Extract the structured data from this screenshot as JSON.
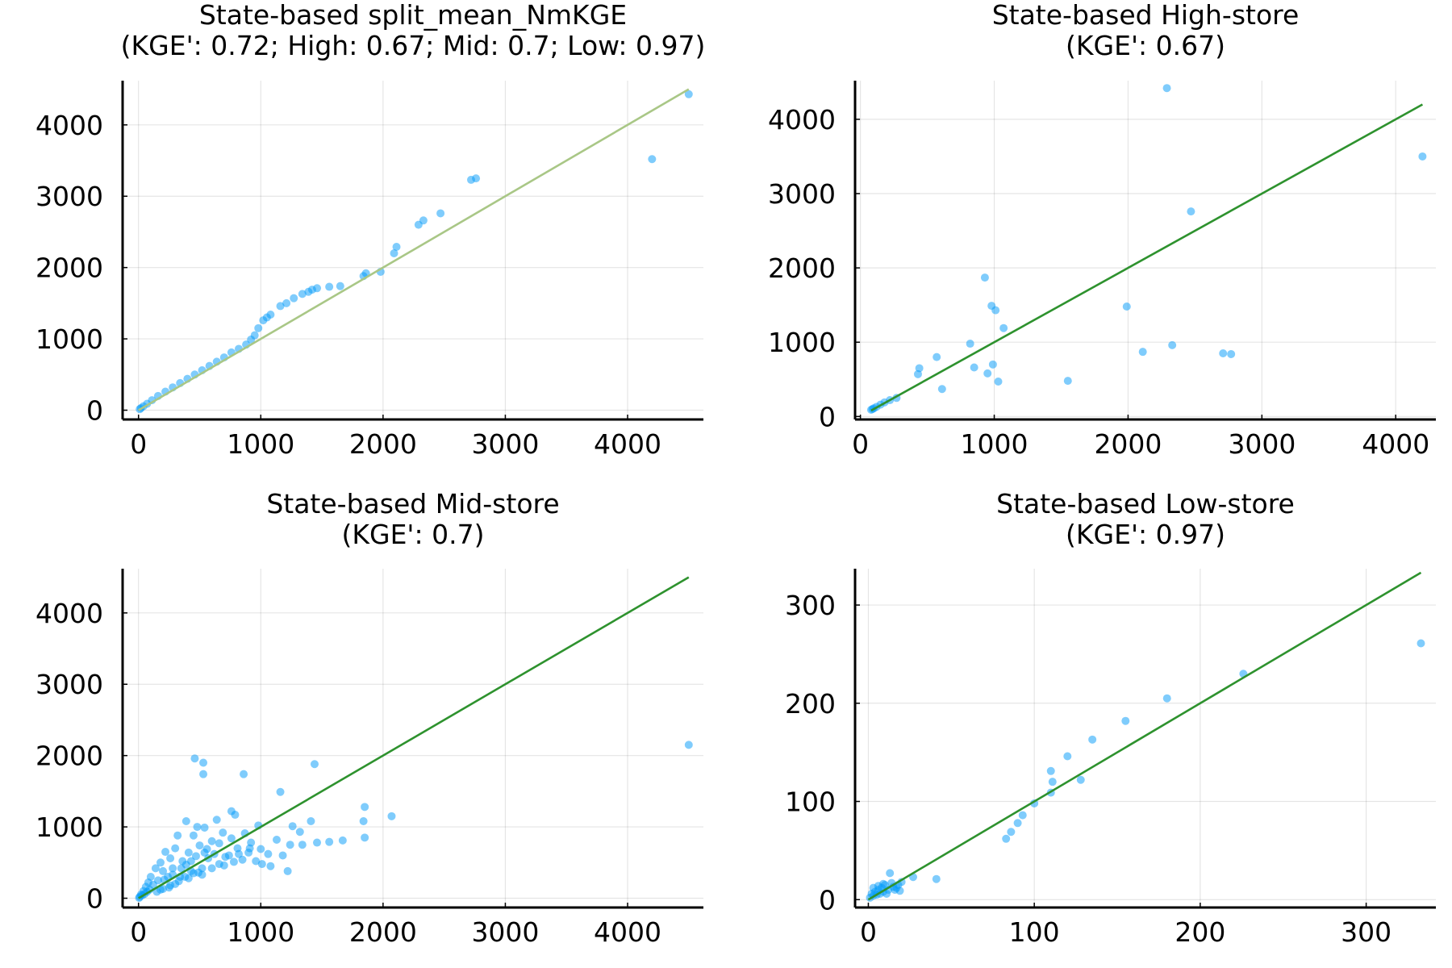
{
  "chart_data": [
    {
      "type": "scatter",
      "title": "State-based split_mean_NmKGE",
      "subtitle": "(KGE': 0.72; High: 0.67; Mid: 0.7; Low: 0.97)",
      "xlim": [
        -130,
        4620
      ],
      "ylim": [
        -130,
        4620
      ],
      "xticks": [
        0,
        1000,
        2000,
        3000,
        4000
      ],
      "yticks": [
        0,
        1000,
        2000,
        3000,
        4000
      ],
      "grid": true,
      "legend": "none",
      "ref_line": {
        "from": [
          0,
          0
        ],
        "to": [
          4500,
          4500
        ],
        "color": "#a9c786"
      },
      "points_color": "#009af9",
      "points": [
        [
          4500,
          4430
        ],
        [
          4200,
          3520
        ],
        [
          2760,
          3250
        ],
        [
          2720,
          3230
        ],
        [
          2470,
          2760
        ],
        [
          2330,
          2660
        ],
        [
          2290,
          2600
        ],
        [
          2110,
          2290
        ],
        [
          2090,
          2200
        ],
        [
          1980,
          1940
        ],
        [
          1860,
          1920
        ],
        [
          1840,
          1880
        ],
        [
          1650,
          1740
        ],
        [
          1560,
          1730
        ],
        [
          1460,
          1710
        ],
        [
          1420,
          1690
        ],
        [
          1390,
          1660
        ],
        [
          1340,
          1630
        ],
        [
          1270,
          1570
        ],
        [
          1210,
          1500
        ],
        [
          1160,
          1460
        ],
        [
          1080,
          1340
        ],
        [
          1050,
          1300
        ],
        [
          1020,
          1260
        ],
        [
          980,
          1150
        ],
        [
          950,
          1050
        ],
        [
          920,
          990
        ],
        [
          880,
          920
        ],
        [
          820,
          860
        ],
        [
          760,
          810
        ],
        [
          700,
          740
        ],
        [
          640,
          680
        ],
        [
          580,
          620
        ],
        [
          520,
          560
        ],
        [
          460,
          500
        ],
        [
          400,
          440
        ],
        [
          340,
          380
        ],
        [
          280,
          320
        ],
        [
          220,
          260
        ],
        [
          160,
          200
        ],
        [
          110,
          140
        ],
        [
          70,
          90
        ],
        [
          40,
          55
        ],
        [
          20,
          30
        ],
        [
          10,
          15
        ]
      ]
    },
    {
      "type": "scatter",
      "title": "State-based High-store",
      "subtitle": "(KGE': 0.67)",
      "xlim": [
        -40,
        4300
      ],
      "ylim": [
        -40,
        4520
      ],
      "xticks": [
        0,
        1000,
        2000,
        3000,
        4000
      ],
      "yticks": [
        0,
        1000,
        2000,
        3000,
        4000
      ],
      "grid": true,
      "legend": "none",
      "ref_line": {
        "from": [
          80,
          80
        ],
        "to": [
          4200,
          4200
        ],
        "color": "#2e922e"
      },
      "points_color": "#009af9",
      "points": [
        [
          2290,
          4420
        ],
        [
          4200,
          3500
        ],
        [
          2470,
          2760
        ],
        [
          930,
          1870
        ],
        [
          980,
          1490
        ],
        [
          1010,
          1430
        ],
        [
          1070,
          1190
        ],
        [
          1990,
          1480
        ],
        [
          850,
          660
        ],
        [
          820,
          980
        ],
        [
          570,
          800
        ],
        [
          440,
          650
        ],
        [
          430,
          570
        ],
        [
          610,
          370
        ],
        [
          950,
          580
        ],
        [
          990,
          700
        ],
        [
          1030,
          470
        ],
        [
          1550,
          480
        ],
        [
          2110,
          870
        ],
        [
          2330,
          960
        ],
        [
          2710,
          850
        ],
        [
          2770,
          840
        ],
        [
          270,
          250
        ],
        [
          220,
          220
        ],
        [
          180,
          190
        ],
        [
          150,
          160
        ],
        [
          120,
          130
        ],
        [
          100,
          110
        ],
        [
          90,
          100
        ],
        [
          80,
          90
        ]
      ]
    },
    {
      "type": "scatter",
      "title": "State-based Mid-store",
      "subtitle": "(KGE': 0.7)",
      "xlim": [
        -130,
        4620
      ],
      "ylim": [
        -130,
        4620
      ],
      "xticks": [
        0,
        1000,
        2000,
        3000,
        4000
      ],
      "yticks": [
        0,
        1000,
        2000,
        3000,
        4000
      ],
      "grid": true,
      "legend": "none",
      "ref_line": {
        "from": [
          0,
          0
        ],
        "to": [
          4500,
          4500
        ],
        "color": "#2e922e"
      },
      "points_color": "#009af9",
      "points": [
        [
          4500,
          2150
        ],
        [
          460,
          1960
        ],
        [
          530,
          1900
        ],
        [
          530,
          1740
        ],
        [
          860,
          1740
        ],
        [
          1440,
          1880
        ],
        [
          790,
          1170
        ],
        [
          1160,
          1490
        ],
        [
          760,
          1220
        ],
        [
          1850,
          1280
        ],
        [
          1840,
          1080
        ],
        [
          2070,
          1150
        ],
        [
          1410,
          1080
        ],
        [
          1260,
          1010
        ],
        [
          1320,
          930
        ],
        [
          1340,
          750
        ],
        [
          1240,
          750
        ],
        [
          1560,
          790
        ],
        [
          1460,
          780
        ],
        [
          1670,
          810
        ],
        [
          1850,
          850
        ],
        [
          1220,
          380
        ],
        [
          1080,
          450
        ],
        [
          1010,
          480
        ],
        [
          960,
          520
        ],
        [
          920,
          780
        ],
        [
          900,
          640
        ],
        [
          810,
          700
        ],
        [
          740,
          600
        ],
        [
          690,
          920
        ],
        [
          660,
          480
        ],
        [
          640,
          1100
        ],
        [
          600,
          800
        ],
        [
          570,
          560
        ],
        [
          540,
          990
        ],
        [
          520,
          420
        ],
        [
          500,
          740
        ],
        [
          480,
          1000
        ],
        [
          450,
          880
        ],
        [
          430,
          380
        ],
        [
          410,
          640
        ],
        [
          390,
          1080
        ],
        [
          360,
          520
        ],
        [
          340,
          300
        ],
        [
          320,
          880
        ],
        [
          300,
          700
        ],
        [
          280,
          420
        ],
        [
          260,
          560
        ],
        [
          240,
          300
        ],
        [
          220,
          650
        ],
        [
          200,
          380
        ],
        [
          180,
          500
        ],
        [
          160,
          250
        ],
        [
          140,
          420
        ],
        [
          120,
          190
        ],
        [
          100,
          300
        ],
        [
          90,
          120
        ],
        [
          80,
          220
        ],
        [
          70,
          90
        ],
        [
          60,
          160
        ],
        [
          50,
          60
        ],
        [
          40,
          100
        ],
        [
          30,
          40
        ],
        [
          20,
          50
        ],
        [
          10,
          20
        ],
        [
          5,
          5
        ],
        [
          380,
          300
        ],
        [
          450,
          350
        ],
        [
          520,
          330
        ],
        [
          600,
          420
        ],
        [
          700,
          460
        ],
        [
          780,
          510
        ],
        [
          850,
          540
        ],
        [
          300,
          200
        ],
        [
          250,
          150
        ],
        [
          200,
          130
        ],
        [
          150,
          90
        ],
        [
          430,
          520
        ],
        [
          560,
          690
        ],
        [
          660,
          770
        ],
        [
          760,
          840
        ],
        [
          870,
          910
        ],
        [
          980,
          1020
        ],
        [
          350,
          420
        ],
        [
          280,
          330
        ],
        [
          210,
          260
        ],
        [
          180,
          120
        ],
        [
          260,
          180
        ],
        [
          330,
          240
        ],
        [
          410,
          280
        ],
        [
          490,
          360
        ],
        [
          620,
          620
        ],
        [
          710,
          580
        ],
        [
          820,
          620
        ],
        [
          910,
          700
        ],
        [
          1000,
          690
        ],
        [
          1130,
          820
        ],
        [
          1180,
          600
        ],
        [
          1060,
          620
        ],
        [
          470,
          590
        ],
        [
          540,
          640
        ],
        [
          390,
          470
        ]
      ]
    },
    {
      "type": "scatter",
      "title": "State-based Low-store",
      "subtitle": "(KGE': 0.97)",
      "xlim": [
        -8,
        342
      ],
      "ylim": [
        -8,
        337
      ],
      "xticks": [
        0,
        100,
        200,
        300
      ],
      "yticks": [
        0,
        100,
        200,
        300
      ],
      "grid": true,
      "legend": "none",
      "ref_line": {
        "from": [
          0,
          0
        ],
        "to": [
          333,
          333
        ],
        "color": "#2e922e"
      },
      "points_color": "#009af9",
      "points": [
        [
          333,
          261
        ],
        [
          226,
          230
        ],
        [
          180,
          205
        ],
        [
          155,
          182
        ],
        [
          135,
          163
        ],
        [
          120,
          146
        ],
        [
          110,
          131
        ],
        [
          111,
          120
        ],
        [
          110,
          109
        ],
        [
          128,
          122
        ],
        [
          100,
          98
        ],
        [
          93,
          86
        ],
        [
          90,
          78
        ],
        [
          86,
          69
        ],
        [
          83,
          62
        ],
        [
          41,
          21
        ],
        [
          27,
          23
        ],
        [
          20,
          18
        ],
        [
          18,
          15
        ],
        [
          15,
          13
        ],
        [
          13,
          27
        ],
        [
          12,
          10
        ],
        [
          10,
          15
        ],
        [
          9,
          8
        ],
        [
          8,
          12
        ],
        [
          7,
          6
        ],
        [
          6,
          10
        ],
        [
          5,
          5
        ],
        [
          4,
          8
        ],
        [
          3,
          4
        ],
        [
          2,
          6
        ],
        [
          1,
          2
        ],
        [
          16,
          10
        ],
        [
          14,
          17
        ],
        [
          11,
          6
        ],
        [
          17,
          12
        ],
        [
          19,
          9
        ],
        [
          6,
          14
        ],
        [
          3,
          12
        ],
        [
          9,
          16
        ]
      ]
    }
  ]
}
